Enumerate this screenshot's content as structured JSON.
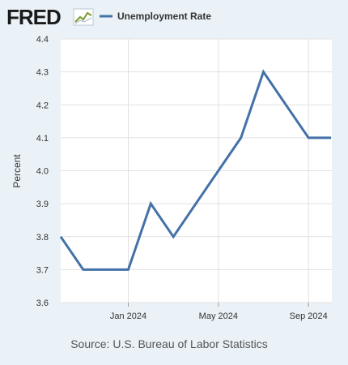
{
  "header": {
    "logo_text": "FRED",
    "legend_label": "Unemployment Rate"
  },
  "colors": {
    "background": "#eaf2f7",
    "plot_background": "#ffffff",
    "series_line": "#4472a8",
    "grid": "#e1e1e1",
    "text": "#333333",
    "source_text": "#555555"
  },
  "source_text": "Source: U.S. Bureau of Labor Statistics",
  "chart_data": {
    "type": "line",
    "title": "",
    "xlabel": "",
    "ylabel": "Percent",
    "ylim": [
      3.6,
      4.4
    ],
    "yticks": [
      "3.6",
      "3.7",
      "3.8",
      "3.9",
      "4.0",
      "4.1",
      "4.2",
      "4.3",
      "4.4"
    ],
    "x": [
      "2023-10",
      "2023-11",
      "2023-12",
      "2024-01",
      "2024-02",
      "2024-03",
      "2024-04",
      "2024-05",
      "2024-06",
      "2024-07",
      "2024-08",
      "2024-09",
      "2024-10"
    ],
    "xtick_labels": [
      {
        "at": "2024-01",
        "label": "Jan 2024"
      },
      {
        "at": "2024-05",
        "label": "May 2024"
      },
      {
        "at": "2024-09",
        "label": "Sep 2024"
      }
    ],
    "grid": true,
    "legend": "top-left",
    "series": [
      {
        "name": "Unemployment Rate",
        "values": [
          3.8,
          3.7,
          3.7,
          3.7,
          3.9,
          3.8,
          3.9,
          4.0,
          4.1,
          4.3,
          4.2,
          4.1,
          4.1
        ]
      }
    ]
  }
}
